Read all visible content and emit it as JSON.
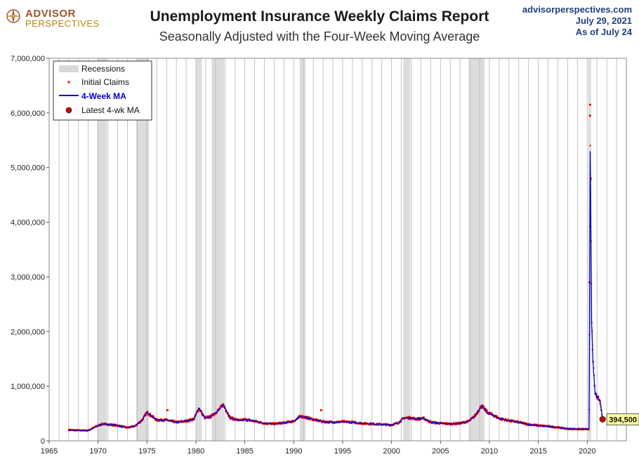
{
  "brand": {
    "line1": "ADVISOR",
    "line2": "PERSPECTIVES"
  },
  "header": {
    "source": "advisorperspectives.com",
    "date": "July 29, 2021",
    "as_of": "As of July 24"
  },
  "chart_data": {
    "type": "line",
    "title": "Unemployment Insurance Weekly Claims Report",
    "subtitle": "Seasonally Adjusted with the Four-Week Moving Average",
    "xlim": [
      1965,
      2024
    ],
    "ylim": [
      0,
      7000000
    ],
    "x_ticks": [
      1965,
      1970,
      1975,
      1980,
      1985,
      1990,
      1995,
      2000,
      2005,
      2010,
      2015,
      2020
    ],
    "y_ticks": [
      0,
      1000000,
      2000000,
      3000000,
      4000000,
      5000000,
      6000000,
      7000000
    ],
    "y_tick_labels": [
      "0",
      "1,000,000",
      "2,000,000",
      "3,000,000",
      "4,000,000",
      "5,000,000",
      "6,000,000",
      "7,000,000"
    ],
    "grid": "vertical",
    "legend_position": "top-left",
    "legend": {
      "recessions": "Recessions",
      "initial_claims": "Initial Claims",
      "ma": "4-Week MA",
      "latest": "Latest 4-wk MA"
    },
    "recessions": [
      [
        1969.9,
        1970.9
      ],
      [
        1973.9,
        1975.2
      ],
      [
        1980.0,
        1980.6
      ],
      [
        1981.6,
        1982.9
      ],
      [
        1990.6,
        1991.2
      ],
      [
        2001.2,
        2001.9
      ],
      [
        2007.9,
        2009.5
      ],
      [
        2020.1,
        2020.4
      ]
    ],
    "series": [
      {
        "name": "4-Week MA",
        "color": "#0000cc",
        "x": [
          1967.0,
          1968.0,
          1969.0,
          1970.0,
          1970.5,
          1971.0,
          1972.0,
          1973.0,
          1973.8,
          1974.5,
          1975.0,
          1975.5,
          1976.0,
          1977.0,
          1978.0,
          1979.0,
          1979.8,
          1980.3,
          1980.9,
          1981.5,
          1982.3,
          1982.8,
          1983.5,
          1984.5,
          1985.0,
          1986.0,
          1987.0,
          1988.0,
          1989.0,
          1990.0,
          1990.7,
          1991.2,
          1992.0,
          1993.0,
          1994.0,
          1995.0,
          1996.0,
          1997.0,
          1998.0,
          1999.0,
          2000.0,
          2000.7,
          2001.3,
          2001.9,
          2002.5,
          2003.3,
          2004.0,
          2005.0,
          2006.0,
          2007.0,
          2007.9,
          2008.5,
          2009.2,
          2009.8,
          2010.5,
          2011.0,
          2012.0,
          2013.0,
          2014.0,
          2015.0,
          2016.0,
          2017.0,
          2018.0,
          2019.0,
          2020.0,
          2020.18,
          2020.23,
          2020.3,
          2020.36,
          2020.45,
          2020.6,
          2020.8,
          2021.0,
          2021.1,
          2021.2,
          2021.35,
          2021.5,
          2021.57
        ],
        "y": [
          200000,
          190000,
          190000,
          280000,
          310000,
          300000,
          280000,
          240000,
          270000,
          380000,
          520000,
          450000,
          380000,
          380000,
          340000,
          360000,
          400000,
          600000,
          420000,
          440000,
          560000,
          660000,
          420000,
          370000,
          390000,
          360000,
          320000,
          310000,
          330000,
          360000,
          450000,
          430000,
          390000,
          350000,
          340000,
          350000,
          340000,
          320000,
          310000,
          300000,
          290000,
          330000,
          420000,
          420000,
          400000,
          410000,
          340000,
          320000,
          310000,
          320000,
          360000,
          450000,
          640000,
          520000,
          460000,
          410000,
          370000,
          340000,
          300000,
          280000,
          265000,
          245000,
          220000,
          215000,
          212000,
          215000,
          1800000,
          5300000,
          4300000,
          2200000,
          1400000,
          870000,
          800000,
          830000,
          750000,
          700000,
          480000,
          394500
        ]
      },
      {
        "name": "Initial Claims",
        "color": "#ff0000",
        "outliers": [
          [
            2020.23,
            2900000
          ],
          [
            2020.28,
            5950000
          ],
          [
            2020.3,
            6150000
          ],
          [
            2020.36,
            4800000
          ],
          [
            1977.1,
            560000
          ],
          [
            1992.8,
            560000
          ]
        ]
      }
    ],
    "latest": {
      "x": 2021.57,
      "y": 394500,
      "label": "394,500"
    }
  }
}
